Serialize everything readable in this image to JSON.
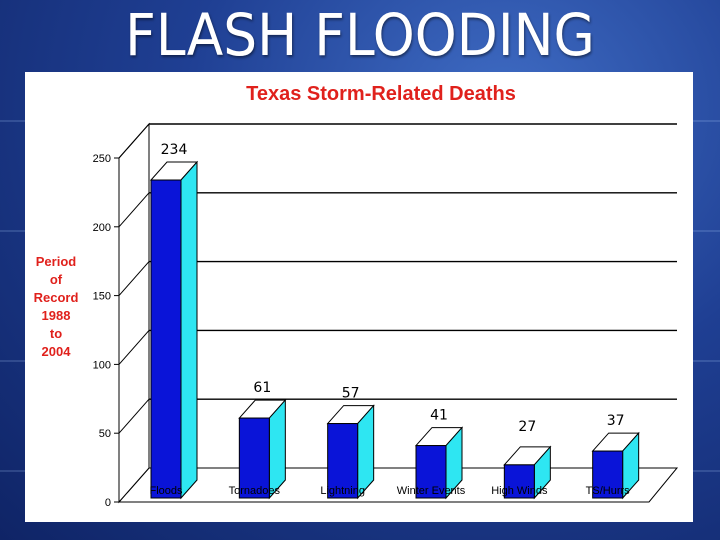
{
  "slide": {
    "title": "FLASH FLOODING"
  },
  "chart_data": {
    "type": "bar",
    "title": "Texas Storm-Related Deaths",
    "ylabel": "Period of Record 1988 to 2004",
    "ylabel_lines": [
      "Period",
      "of",
      "Record",
      "1988",
      "to",
      "2004"
    ],
    "xlabel": "",
    "categories": [
      "Floods",
      "Tornadoes",
      "Lightning",
      "Winter Events",
      "High Winds",
      "TS/Hurrs"
    ],
    "values": [
      234,
      61,
      57,
      41,
      27,
      37
    ],
    "ylim": [
      0,
      250
    ],
    "yticks": [
      0,
      50,
      100,
      150,
      200,
      250
    ],
    "grid": true,
    "three_d": true,
    "colors": {
      "front": "#0a14d8",
      "side": "#2ee6f2",
      "top": "#ffffff",
      "title": "#e0211c",
      "ylabel": "#e0211c",
      "grid": "#000000"
    }
  }
}
